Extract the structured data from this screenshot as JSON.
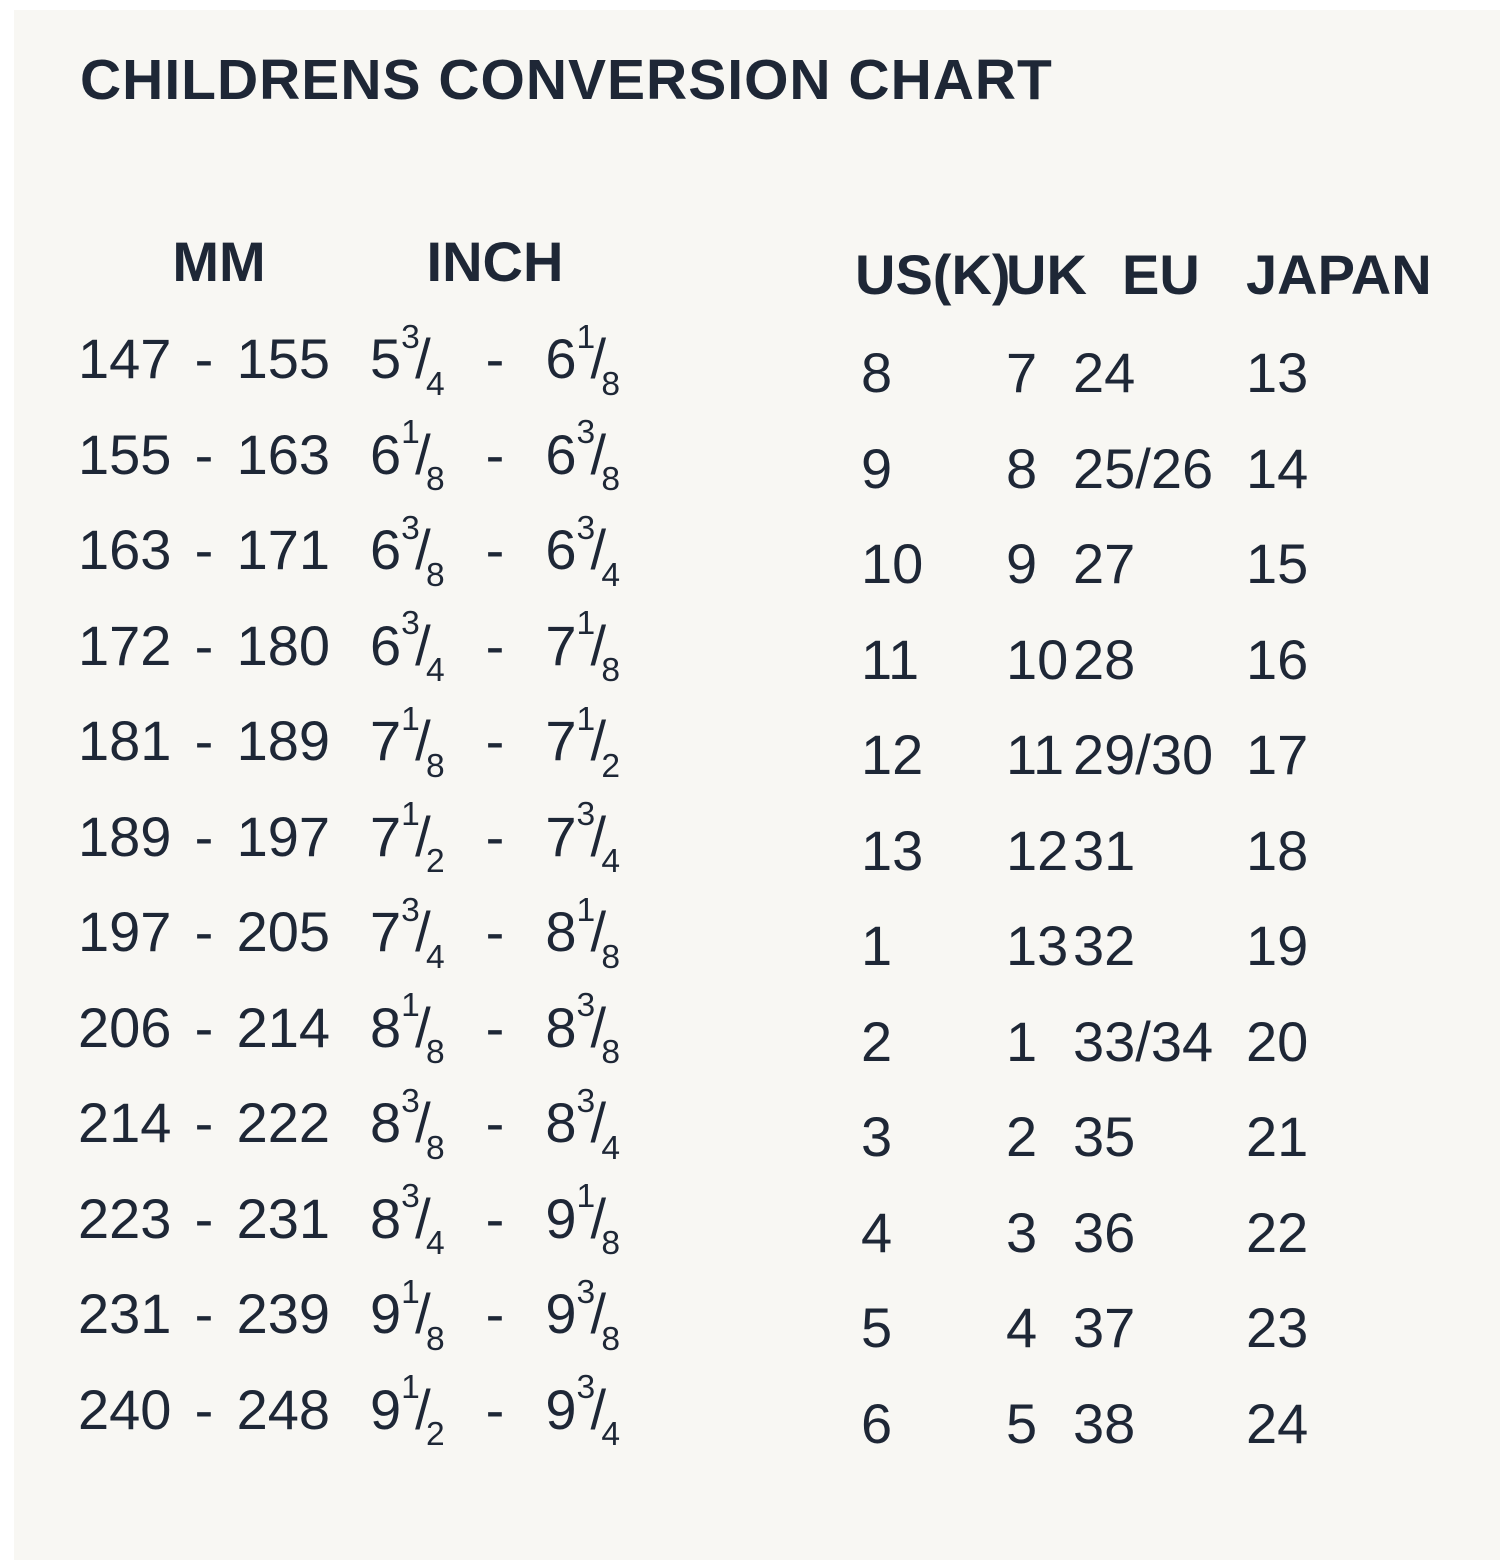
{
  "title": "CHILDRENS CONVERSION CHART",
  "colors": {
    "text": "#1e2736",
    "background": "#f8f7f3",
    "edge": "#ffffff"
  },
  "chart_data": {
    "type": "table",
    "title": "CHILDRENS CONVERSION CHART",
    "columns": [
      "MM",
      "INCH",
      "US(K)",
      "UK",
      "EU",
      "JAPAN"
    ],
    "rows": [
      {
        "mm": "147 - 155",
        "inch": "5 3/4 - 6 1/8",
        "us": "8",
        "uk": "7",
        "eu": "24",
        "japan": "13"
      },
      {
        "mm": "155 - 163",
        "inch": "6 1/8 - 6 3/8",
        "us": "9",
        "uk": "8",
        "eu": "25/26",
        "japan": "14"
      },
      {
        "mm": "163 - 171",
        "inch": "6 3/8 - 6 3/4",
        "us": "10",
        "uk": "9",
        "eu": "27",
        "japan": "15"
      },
      {
        "mm": "172 - 180",
        "inch": "6 3/4 - 7 1/8",
        "us": "11",
        "uk": "10",
        "eu": "28",
        "japan": "16"
      },
      {
        "mm": "181 - 189",
        "inch": "7 1/8 - 7 1/2",
        "us": "12",
        "uk": "11",
        "eu": "29/30",
        "japan": "17"
      },
      {
        "mm": "189 - 197",
        "inch": "7 1/2 - 7 3/4",
        "us": "13",
        "uk": "12",
        "eu": "31",
        "japan": "18"
      },
      {
        "mm": "197 - 205",
        "inch": "7 3/4 - 8 1/8",
        "us": "1",
        "uk": "13",
        "eu": "32",
        "japan": "19"
      },
      {
        "mm": "206 - 214",
        "inch": "8 1/8 - 8 3/8",
        "us": "2",
        "uk": "1",
        "eu": "33/34",
        "japan": "20"
      },
      {
        "mm": "214 - 222",
        "inch": "8 3/8 - 8 3/4",
        "us": "3",
        "uk": "2",
        "eu": "35",
        "japan": "21"
      },
      {
        "mm": "223 - 231",
        "inch": "8 3/4 - 9 1/8",
        "us": "4",
        "uk": "3",
        "eu": "36",
        "japan": "22"
      },
      {
        "mm": "231 - 239",
        "inch": "9 1/8 - 9 3/8",
        "us": "5",
        "uk": "4",
        "eu": "37",
        "japan": "23"
      },
      {
        "mm": "240 - 248",
        "inch": "9 1/2 - 9 3/4",
        "us": "6",
        "uk": "5",
        "eu": "38",
        "japan": "24"
      }
    ]
  }
}
